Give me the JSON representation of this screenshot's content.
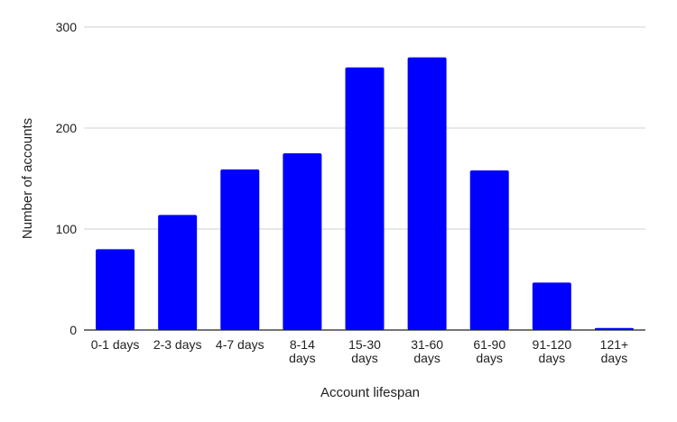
{
  "chart_data": {
    "type": "bar",
    "title": "",
    "xlabel": "Account lifespan",
    "ylabel": "Number of accounts",
    "categories": [
      [
        "0-1 days"
      ],
      [
        "2-3 days"
      ],
      [
        "4-7 days"
      ],
      [
        "8-14",
        "days"
      ],
      [
        "15-30",
        "days"
      ],
      [
        "31-60",
        "days"
      ],
      [
        "61-90",
        "days"
      ],
      [
        "91-120",
        "days"
      ],
      [
        "121+",
        "days"
      ]
    ],
    "values": [
      80,
      114,
      159,
      175,
      260,
      270,
      158,
      47,
      2
    ],
    "ylim": [
      0,
      300
    ],
    "yticks": [
      0,
      100,
      200,
      300
    ],
    "grid": true,
    "legend": "none",
    "colors": {
      "bar": "#0000ff",
      "grid": "#d0d0d0",
      "baseline": "#222222"
    }
  }
}
